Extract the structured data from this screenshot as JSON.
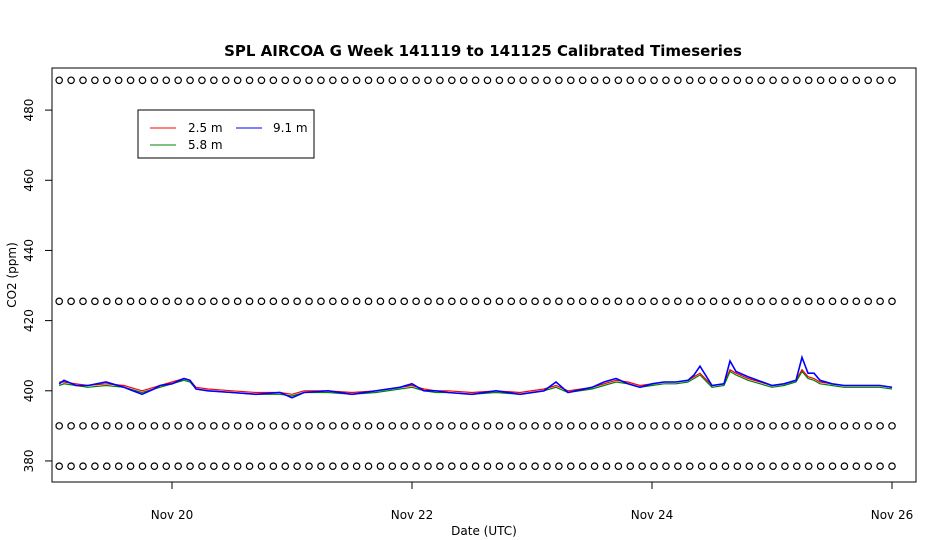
{
  "chart_data": {
    "type": "line",
    "title": "SPL AIRCOA G  Week 141119 to 141125  Calibrated Timeseries",
    "xlabel": "Date (UTC)",
    "ylabel": "CO2 (ppm)",
    "x_unit": "days (Nov)",
    "xlim": [
      19.0,
      26.2
    ],
    "ylim": [
      374,
      492
    ],
    "x_ticks": [
      20,
      22,
      24,
      26
    ],
    "x_tick_labels": [
      "Nov 20",
      "Nov 22",
      "Nov 24",
      "Nov 26"
    ],
    "y_ticks": [
      380,
      400,
      420,
      440,
      460,
      480
    ],
    "y_tick_labels": [
      "380",
      "400",
      "420",
      "440",
      "460",
      "480"
    ],
    "grid": false,
    "legend_placement": "top-left",
    "series": [
      {
        "name": "2.5 m",
        "color": "#ff0000",
        "x": [
          19.06,
          19.1,
          19.2,
          19.3,
          19.45,
          19.6,
          19.75,
          19.85,
          19.9,
          20.0,
          20.1,
          20.15,
          20.2,
          20.3,
          20.5,
          20.7,
          20.9,
          21.0,
          21.1,
          21.3,
          21.5,
          21.7,
          21.9,
          22.0,
          22.05,
          22.1,
          22.2,
          22.3,
          22.5,
          22.7,
          22.9,
          23.1,
          23.2,
          23.3,
          23.5,
          23.6,
          23.7,
          23.8,
          23.9,
          24.0,
          24.1,
          24.2,
          24.3,
          24.35,
          24.4,
          24.5,
          24.6,
          24.65,
          24.7,
          24.8,
          25.0,
          25.1,
          25.2,
          25.25,
          25.3,
          25.35,
          25.4,
          25.5,
          25.6,
          25.7,
          25.8,
          25.9,
          26.0
        ],
        "y": [
          402.5,
          402.5,
          402,
          401.5,
          402,
          401.5,
          400,
          401,
          401.5,
          402.5,
          403.5,
          403,
          401,
          400.5,
          400,
          399.5,
          399.5,
          399,
          400,
          400,
          399.5,
          400,
          401,
          401.5,
          401,
          400.5,
          400,
          400,
          399.5,
          400,
          399.5,
          400.5,
          401.5,
          400,
          401,
          402,
          403,
          402.5,
          401.5,
          402,
          402.5,
          402.5,
          403,
          404,
          405,
          401.5,
          402,
          406,
          405,
          403.5,
          401.5,
          402,
          403,
          406,
          404,
          403.5,
          402.5,
          402,
          401.5,
          401.5,
          401.5,
          401.5,
          401
        ]
      },
      {
        "name": "5.8 m",
        "color": "#008000",
        "x": [
          19.06,
          19.1,
          19.2,
          19.3,
          19.45,
          19.6,
          19.75,
          19.85,
          19.9,
          20.0,
          20.1,
          20.15,
          20.2,
          20.3,
          20.5,
          20.7,
          20.9,
          21.0,
          21.1,
          21.3,
          21.5,
          21.7,
          21.9,
          22.0,
          22.05,
          22.1,
          22.2,
          22.3,
          22.5,
          22.7,
          22.9,
          23.1,
          23.2,
          23.3,
          23.5,
          23.6,
          23.7,
          23.8,
          23.9,
          24.0,
          24.1,
          24.2,
          24.3,
          24.35,
          24.4,
          24.5,
          24.6,
          24.65,
          24.7,
          24.8,
          25.0,
          25.1,
          25.2,
          25.25,
          25.3,
          25.35,
          25.4,
          25.5,
          25.6,
          25.7,
          25.8,
          25.9,
          26.0
        ],
        "y": [
          401.5,
          402,
          401.5,
          401,
          401.5,
          401,
          399.5,
          400.5,
          401,
          402,
          403,
          402.5,
          400.5,
          400,
          399.5,
          399,
          399,
          398.5,
          399.5,
          399.5,
          399,
          399.5,
          400.5,
          401,
          400.5,
          400,
          399.5,
          399.5,
          399,
          399.5,
          399,
          400,
          401,
          399.5,
          400.5,
          401.5,
          402.5,
          402,
          401,
          401.5,
          402,
          402,
          402.5,
          403.5,
          404.5,
          401,
          401.5,
          405.5,
          404.5,
          403,
          401,
          401.5,
          402.5,
          405.5,
          403.5,
          403,
          402,
          401.5,
          401,
          401,
          401,
          401,
          400.5
        ]
      },
      {
        "name": "9.1 m",
        "color": "#0000ff",
        "x": [
          19.06,
          19.1,
          19.2,
          19.3,
          19.45,
          19.6,
          19.75,
          19.85,
          19.9,
          20.0,
          20.1,
          20.15,
          20.2,
          20.3,
          20.5,
          20.7,
          20.9,
          21.0,
          21.1,
          21.3,
          21.5,
          21.7,
          21.9,
          22.0,
          22.05,
          22.1,
          22.2,
          22.3,
          22.5,
          22.7,
          22.9,
          23.1,
          23.2,
          23.3,
          23.5,
          23.6,
          23.7,
          23.8,
          23.9,
          24.0,
          24.1,
          24.2,
          24.3,
          24.35,
          24.4,
          24.5,
          24.6,
          24.65,
          24.7,
          24.8,
          25.0,
          25.1,
          25.2,
          25.25,
          25.3,
          25.35,
          25.4,
          25.5,
          25.6,
          25.7,
          25.8,
          25.9,
          26.0
        ],
        "y": [
          402,
          403,
          401.5,
          401.5,
          402.5,
          401,
          399,
          400.5,
          401.5,
          402,
          403.5,
          403,
          400.5,
          400,
          399.5,
          399,
          399.5,
          398,
          399.5,
          400,
          399,
          400,
          401,
          402,
          401,
          400,
          400,
          399.5,
          399,
          400,
          399,
          400,
          402.5,
          399.5,
          401,
          402.5,
          403.5,
          402,
          401,
          402,
          402.5,
          402.5,
          403,
          404.5,
          407,
          401.5,
          402,
          408.5,
          405.5,
          404,
          401.5,
          402,
          403,
          409.5,
          405,
          405,
          403,
          402,
          401.5,
          401.5,
          401.5,
          401.5,
          401
        ]
      }
    ],
    "calibration_markers": {
      "symbol": "circle",
      "levels": [
        378.5,
        390,
        425.5,
        488.5
      ],
      "x_start": 19.06,
      "x_end": 26.0,
      "count_per_level": 71
    }
  }
}
